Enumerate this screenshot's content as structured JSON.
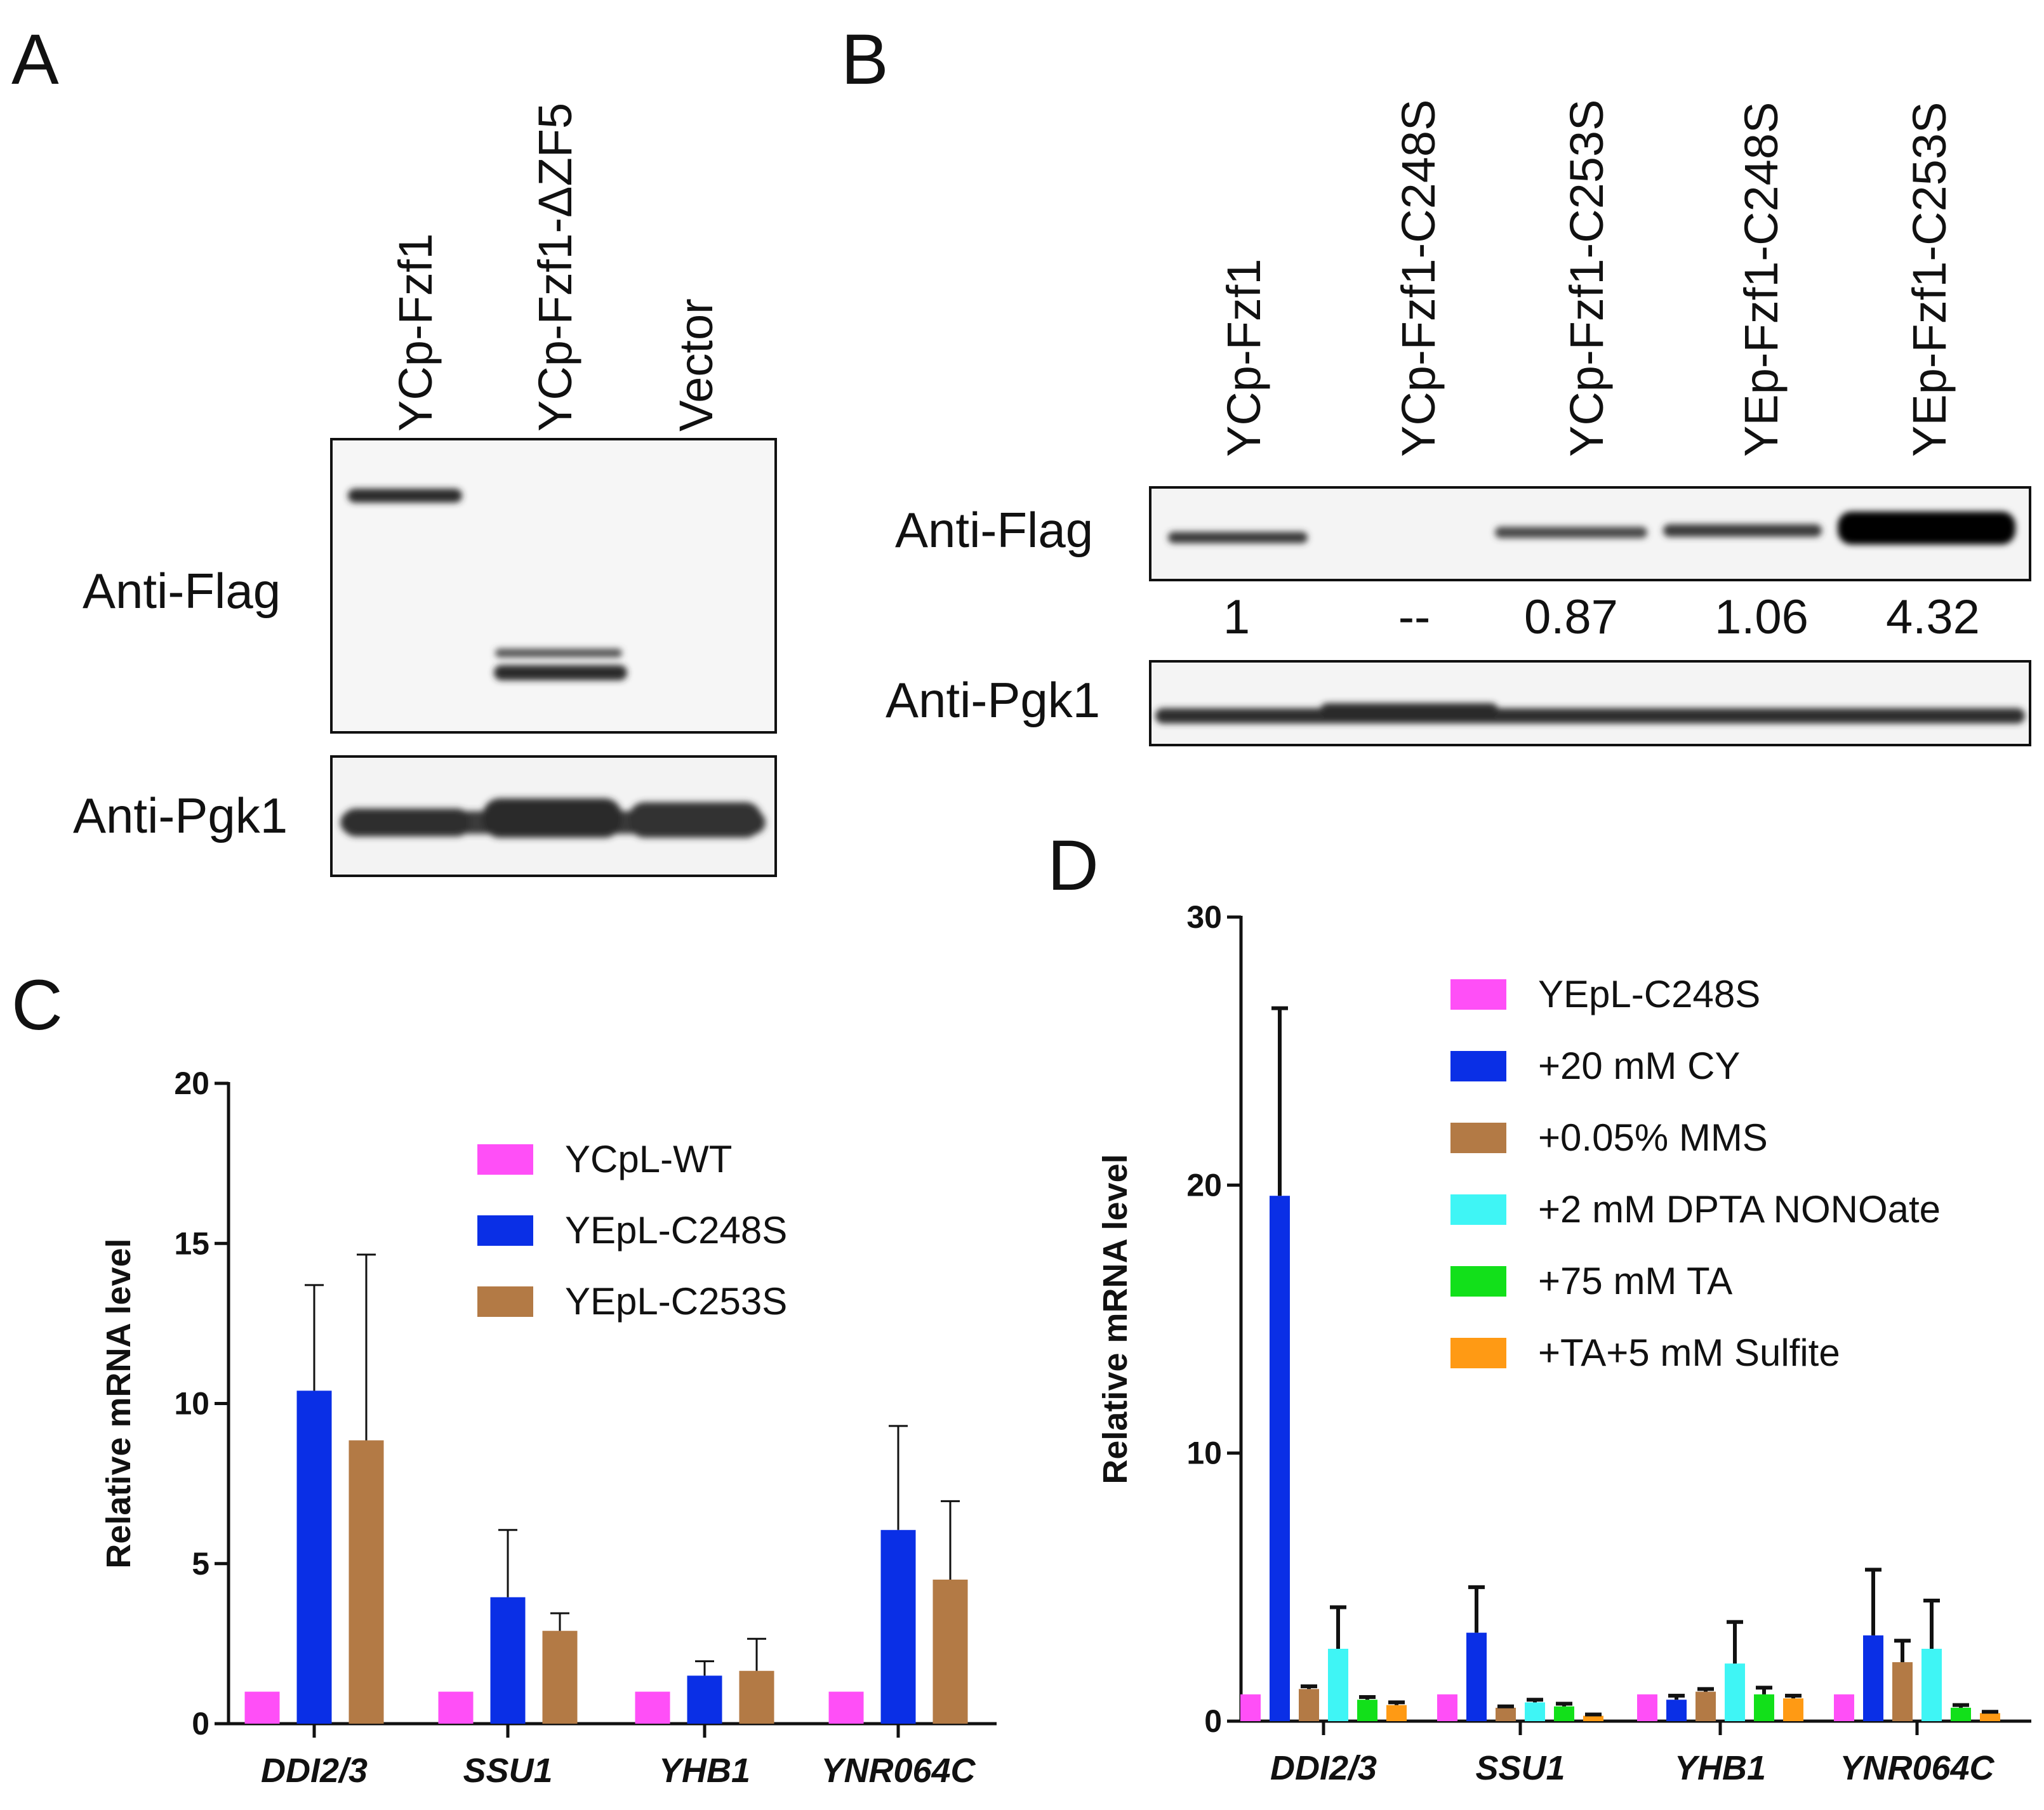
{
  "panels": {
    "A": {
      "label": "A",
      "lanes": [
        "YCp-Fzf1",
        "YCp-Fzf1-ΔZF5",
        "Vector"
      ],
      "antibodies": [
        "Anti-Flag",
        "Anti-Pgk1"
      ]
    },
    "B": {
      "label": "B",
      "lanes": [
        "YCp-Fzf1",
        "YCp-Fzf1-C248S",
        "YCp-Fzf1-C253S",
        "YEp-Fzf1-C248S",
        "YEp-Fzf1-C253S"
      ],
      "antibodies": [
        "Anti-Flag",
        "Anti-Pgk1"
      ],
      "quantification": [
        "1",
        "--",
        "0.87",
        "1.06",
        "4.32"
      ]
    },
    "C": {
      "label": "C"
    },
    "D": {
      "label": "D"
    }
  },
  "colors": {
    "magenta": "#ff4ff7",
    "blue": "#0a2fe6",
    "brown": "#b37a45",
    "cyan": "#3ff5f5",
    "green": "#12e01a",
    "orange": "#ff9a14"
  },
  "chart_data": [
    {
      "panel": "C",
      "type": "bar",
      "title": "",
      "xlabel": "",
      "ylabel": "Relative mRNA level",
      "ylim": [
        0,
        20
      ],
      "yticks": [
        0,
        5,
        10,
        15,
        20
      ],
      "categories": [
        "DDI2/3",
        "SSU1",
        "YHB1",
        "YNR064C"
      ],
      "legend_position": "top-right",
      "series": [
        {
          "name": "YCpL-WT",
          "color": "#ff4ff7",
          "values": [
            1,
            1,
            1,
            1
          ],
          "errors": [
            0,
            0,
            0,
            0
          ]
        },
        {
          "name": "YEpL-C248S",
          "color": "#0a2fe6",
          "values": [
            10.4,
            3.95,
            1.5,
            6.05
          ],
          "errors": [
            3.3,
            2.1,
            0.45,
            3.25
          ]
        },
        {
          "name": "YEpL-C253S",
          "color": "#b37a45",
          "values": [
            8.85,
            2.9,
            1.65,
            4.5
          ],
          "errors": [
            5.8,
            0.55,
            1.0,
            2.45
          ]
        }
      ]
    },
    {
      "panel": "D",
      "type": "bar",
      "title": "",
      "xlabel": "",
      "ylabel": "Relative mRNA level",
      "ylim": [
        0,
        30
      ],
      "yticks": [
        0,
        10,
        20,
        30
      ],
      "categories": [
        "DDI2/3",
        "SSU1",
        "YHB1",
        "YNR064C"
      ],
      "legend_position": "top-right",
      "series": [
        {
          "name": "YEpL-C248S",
          "color": "#ff4ff7",
          "values": [
            1,
            1,
            1,
            1
          ],
          "errors": [
            0,
            0,
            0,
            0
          ]
        },
        {
          "name": "+20 mM CY",
          "color": "#0a2fe6",
          "values": [
            19.6,
            3.3,
            0.8,
            3.2
          ],
          "errors": [
            7.0,
            1.7,
            0.15,
            2.45
          ]
        },
        {
          "name": "+0.05% MMS",
          "color": "#b37a45",
          "values": [
            1.2,
            0.5,
            1.1,
            2.2
          ],
          "errors": [
            0.1,
            0.05,
            0.1,
            0.8
          ]
        },
        {
          "name": "+2 mM DPTA NONOate",
          "color": "#3ff5f5",
          "values": [
            2.7,
            0.7,
            2.15,
            2.7
          ],
          "errors": [
            1.55,
            0.1,
            1.55,
            1.8
          ]
        },
        {
          "name": "+75 mM TA",
          "color": "#12e01a",
          "values": [
            0.8,
            0.55,
            1.0,
            0.5
          ],
          "errors": [
            0.1,
            0.1,
            0.25,
            0.1
          ]
        },
        {
          "name": "+TA+5 mM Sulfite",
          "color": "#ff9a14",
          "values": [
            0.6,
            0.2,
            0.85,
            0.3
          ],
          "errors": [
            0.1,
            0.05,
            0.1,
            0.05
          ]
        }
      ]
    }
  ]
}
